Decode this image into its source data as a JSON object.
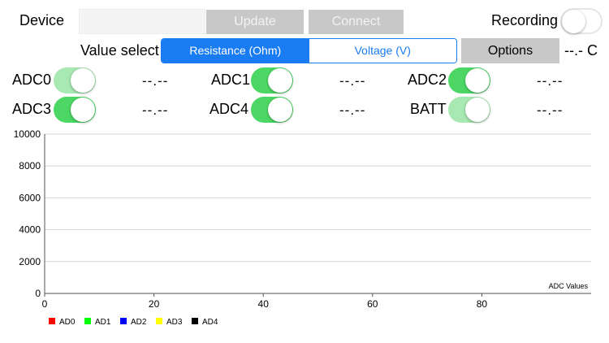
{
  "header": {
    "device_label": "Device",
    "update_label": "Update",
    "connect_label": "Connect",
    "recording_label": "Recording"
  },
  "value_select": {
    "label": "Value select",
    "options": [
      "Resistance (Ohm)",
      "Voltage (V)"
    ],
    "selected": "Resistance (Ohm)",
    "options_button": "Options",
    "temperature": "--.- C"
  },
  "channels": [
    {
      "name": "ADC0",
      "value": "--.--",
      "state": "dim"
    },
    {
      "name": "ADC1",
      "value": "--.--",
      "state": "on"
    },
    {
      "name": "ADC2",
      "value": "--.--",
      "state": "on"
    },
    {
      "name": "ADC3",
      "value": "--.--",
      "state": "on"
    },
    {
      "name": "ADC4",
      "value": "--.--",
      "state": "on"
    },
    {
      "name": "BATT",
      "value": "--.--",
      "state": "dim"
    }
  ],
  "colors": {
    "accent": "#1a7cf2",
    "toggle_on": "#4cd764",
    "toggle_dim": "#a8e8b2"
  },
  "chart_data": {
    "type": "line",
    "title": "",
    "xlabel": "",
    "ylabel": "",
    "annotation": "ADC Values",
    "xlim": [
      0,
      100
    ],
    "ylim": [
      0,
      10000
    ],
    "x_ticks": [
      "0",
      "20",
      "40",
      "60",
      "80"
    ],
    "y_ticks": [
      "10000",
      "8000",
      "6000",
      "4000",
      "2000",
      "0"
    ],
    "grid": "horizontal",
    "legend_position": "bottom-left",
    "series": [
      {
        "name": "AD0",
        "color": "#ff0000",
        "values": []
      },
      {
        "name": "AD1",
        "color": "#00ff00",
        "values": []
      },
      {
        "name": "AD2",
        "color": "#0000ff",
        "values": []
      },
      {
        "name": "AD3",
        "color": "#ffff00",
        "values": []
      },
      {
        "name": "AD4",
        "color": "#000000",
        "values": []
      }
    ]
  }
}
